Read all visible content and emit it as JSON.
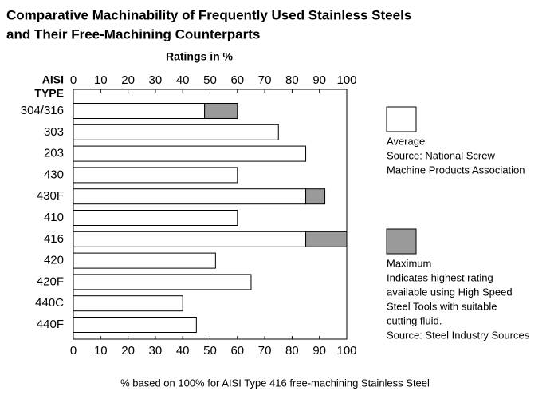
{
  "chart_data": {
    "type": "stacked-bar-horizontal",
    "title": [
      "Comparative Machinability of Frequently Used Stainless Steels",
      "and Their Free-Machining Counterparts"
    ],
    "x_label": "Ratings in %",
    "y_label": [
      "AISI",
      "TYPE"
    ],
    "footnote": "% based on 100% for AISI Type 416 free-machining Stainless Steel",
    "categories": [
      "304/316",
      "303",
      "203",
      "430",
      "430F",
      "410",
      "416",
      "420",
      "420F",
      "440C",
      "440F"
    ],
    "series": [
      {
        "name": "Average",
        "color": "#ffffff",
        "note": [
          "Source: National Screw",
          "Machine Products Association"
        ],
        "values": [
          48,
          75,
          85,
          60,
          85,
          60,
          85,
          52,
          65,
          40,
          45
        ]
      },
      {
        "name": "Maximum",
        "color": "#9a9a9a",
        "note": [
          "Indicates highest rating",
          "available using High Speed",
          "Steel Tools with suitable",
          "cutting fluid.",
          "Source: Steel Industry Sources"
        ],
        "values": [
          12,
          null,
          null,
          null,
          7,
          null,
          15,
          null,
          null,
          null,
          null
        ]
      }
    ],
    "xlim": [
      0,
      100
    ],
    "xticks": [
      0,
      10,
      20,
      30,
      40,
      50,
      60,
      70,
      80,
      90,
      100
    ]
  }
}
